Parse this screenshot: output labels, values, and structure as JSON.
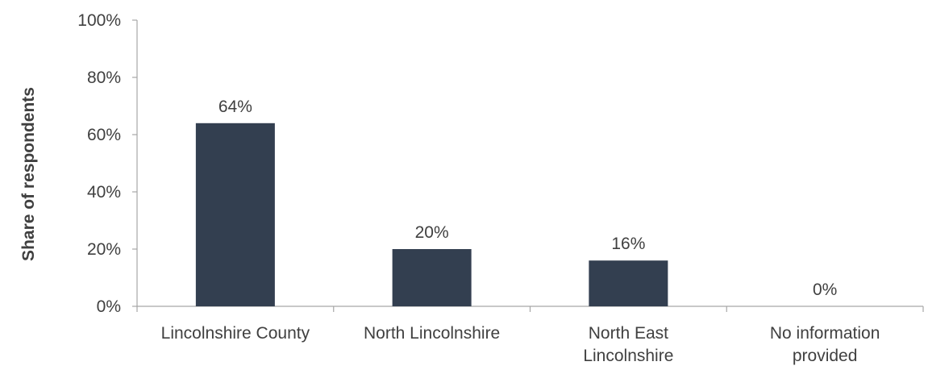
{
  "chart_data": {
    "type": "bar",
    "title": "",
    "xlabel": "",
    "ylabel": "Share of respondents",
    "categories": [
      [
        "Lincolnshire County"
      ],
      [
        "North Lincolnshire"
      ],
      [
        "North East",
        "Lincolnshire"
      ],
      [
        "No information",
        "provided"
      ]
    ],
    "values": [
      64,
      20,
      16,
      0
    ],
    "data_labels": [
      "64%",
      "20%",
      "16%",
      "0%"
    ],
    "ylim": [
      0,
      100
    ],
    "yticks": [
      0,
      20,
      40,
      60,
      80,
      100
    ],
    "ytick_labels": [
      "0%",
      "20%",
      "40%",
      "60%",
      "80%",
      "100%"
    ],
    "grid": false,
    "legend": "none",
    "colors": {
      "bar": "#333F50",
      "axis": "#A6A6A6",
      "text": "#404040"
    }
  }
}
